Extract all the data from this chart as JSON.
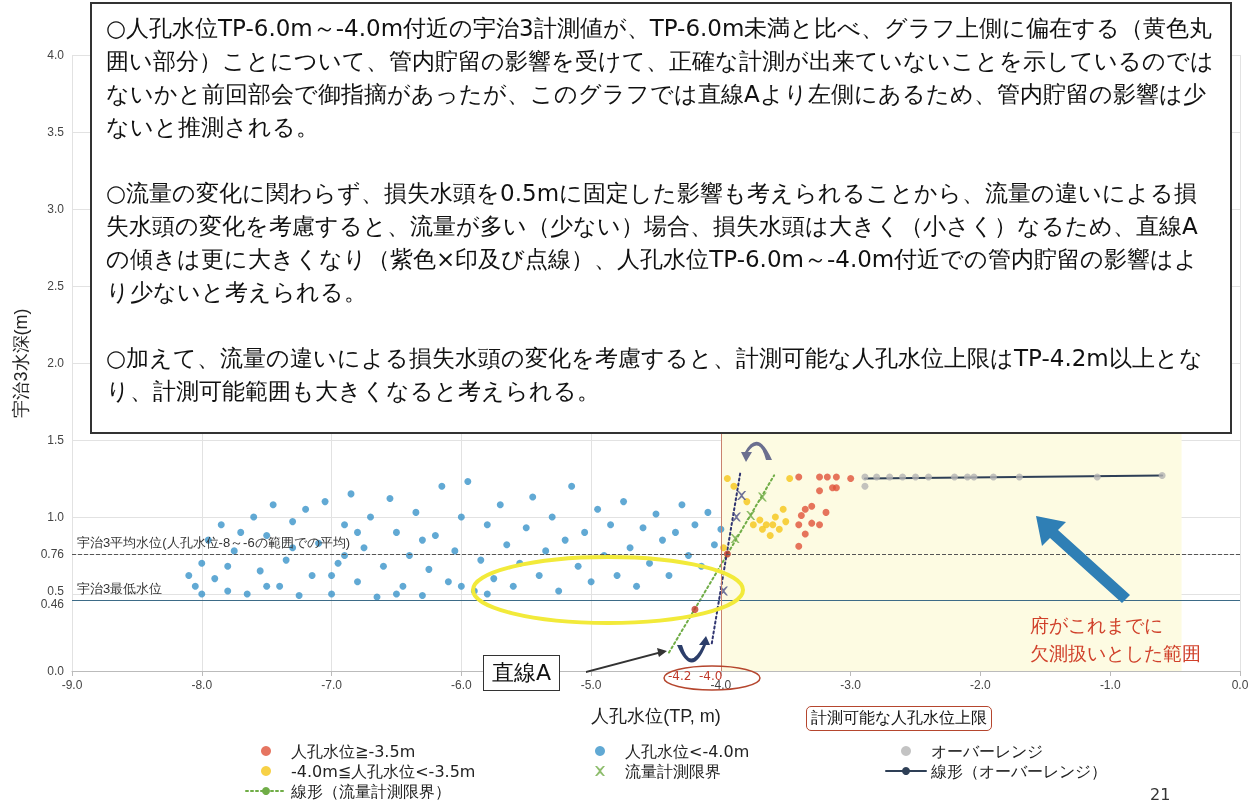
{
  "chart_data": {
    "type": "scatter",
    "xlabel": "人孔水位(TP, m)",
    "ylabel": "宇治3水深(m)",
    "xlim": [
      -9,
      0
    ],
    "xticks": [
      {
        "value": -9,
        "label": "-9.0"
      },
      {
        "value": -8,
        "label": "-8.0"
      },
      {
        "value": -7,
        "label": "-7.0"
      },
      {
        "value": -6,
        "label": "-6.0"
      },
      {
        "value": -5,
        "label": "-5.0"
      },
      {
        "value": -4,
        "label": "-4.0"
      },
      {
        "value": -3,
        "label": "-3.0"
      },
      {
        "value": -2,
        "label": "-2.0"
      },
      {
        "value": -1,
        "label": "-1.0"
      },
      {
        "value": 0,
        "label": "0.0"
      }
    ],
    "ylim": [
      0,
      4
    ],
    "yticks": [
      {
        "value": 0,
        "label": "0.0"
      },
      0.46,
      0.5,
      0.76,
      {
        "value": 1,
        "label": "1.0"
      },
      1.5,
      {
        "value": 2,
        "label": "2.0"
      },
      2.5,
      {
        "value": 3,
        "label": "3.0"
      },
      3.5,
      {
        "value": 4,
        "label": "4.0"
      }
    ],
    "grid": true,
    "legend": "bottom",
    "series": [
      {
        "name": "人孔水位≧-3.5m",
        "marker": "circle",
        "color": "#e0533a",
        "x": [
          -3.4,
          -3.24,
          -3.18,
          -3.11,
          -3.0,
          -3.24,
          -3.14,
          -3.11,
          -3.35,
          -3.3,
          -3.38,
          -3.19,
          -3.4,
          -3.3,
          -3.24,
          -3.35,
          -3.4
        ],
        "values": [
          1.26,
          1.26,
          1.26,
          1.26,
          1.25,
          1.17,
          1.19,
          1.19,
          1.05,
          1.07,
          1.01,
          1.03,
          0.95,
          0.96,
          0.95,
          0.89,
          0.81
        ]
      },
      {
        "name": "人孔水位<-4.0m",
        "marker": "circle",
        "color": "#3a93c9",
        "x": [
          -8.1,
          -8.05,
          -8.0,
          -7.95,
          -7.9,
          -7.85,
          -7.8,
          -7.75,
          -7.7,
          -7.65,
          -7.6,
          -7.55,
          -7.5,
          -7.45,
          -7.4,
          -7.35,
          -7.3,
          -7.25,
          -7.2,
          -7.15,
          -7.1,
          -7.05,
          -7.0,
          -6.95,
          -6.9,
          -6.85,
          -6.8,
          -6.75,
          -6.7,
          -6.65,
          -6.6,
          -6.55,
          -6.5,
          -6.45,
          -6.4,
          -6.35,
          -6.3,
          -6.25,
          -6.2,
          -6.15,
          -6.1,
          -6.05,
          -6.0,
          -5.95,
          -5.9,
          -5.85,
          -5.8,
          -5.75,
          -5.7,
          -5.65,
          -5.6,
          -5.55,
          -5.5,
          -5.45,
          -5.4,
          -5.35,
          -5.3,
          -5.25,
          -5.2,
          -5.15,
          -5.1,
          -5.05,
          -5.0,
          -4.95,
          -4.9,
          -4.85,
          -4.8,
          -4.75,
          -4.7,
          -4.65,
          -4.6,
          -4.55,
          -4.5,
          -4.45,
          -4.4,
          -4.35,
          -4.3,
          -4.25,
          -4.2,
          -4.15,
          -4.1,
          -4.05,
          -4.0,
          -8.0,
          -7.5,
          -7.0,
          -6.5,
          -6.0,
          -7.3,
          -6.8,
          -6.3,
          -7.8,
          -6.9,
          -5.8
        ],
        "values": [
          0.62,
          0.55,
          0.7,
          0.85,
          0.6,
          0.95,
          0.52,
          0.78,
          0.9,
          0.5,
          1.0,
          0.65,
          0.88,
          1.08,
          0.55,
          0.72,
          0.97,
          0.49,
          1.05,
          0.62,
          0.83,
          1.1,
          0.5,
          0.7,
          0.95,
          1.15,
          0.58,
          0.8,
          1.0,
          0.48,
          0.68,
          1.12,
          0.9,
          0.55,
          0.75,
          1.03,
          0.49,
          0.66,
          0.88,
          1.2,
          0.58,
          0.78,
          1.0,
          1.23,
          0.52,
          0.72,
          0.95,
          0.6,
          1.08,
          0.82,
          0.55,
          0.7,
          0.93,
          1.13,
          0.62,
          0.78,
          1.0,
          0.52,
          0.85,
          1.2,
          0.68,
          0.9,
          0.58,
          1.05,
          0.75,
          0.95,
          0.62,
          1.1,
          0.8,
          0.55,
          0.93,
          0.7,
          1.02,
          0.85,
          0.62,
          0.9,
          1.08,
          0.75,
          0.95,
          0.68,
          1.03,
          0.82,
          0.92,
          0.5,
          0.55,
          0.62,
          0.5,
          0.55,
          0.8,
          0.9,
          0.85,
          0.68,
          0.75,
          0.5
        ]
      },
      {
        "name": "オーバーレンジ",
        "marker": "circle",
        "color": "#b4b4b4",
        "x": [
          -2.89,
          -2.89,
          -2.8,
          -2.7,
          -2.6,
          -2.5,
          -2.4,
          -2.2,
          -2.1,
          -2.05,
          -1.9,
          -1.7,
          -1.1,
          -0.6
        ],
        "values": [
          1.26,
          1.2,
          1.26,
          1.26,
          1.26,
          1.26,
          1.26,
          1.26,
          1.26,
          1.26,
          1.26,
          1.26,
          1.26,
          1.27
        ]
      },
      {
        "name": "-4.0m≦人孔水位<-3.5m",
        "marker": "circle",
        "color": "#f5c518",
        "x": [
          -3.98,
          -3.95,
          -3.9,
          -3.8,
          -3.75,
          -3.7,
          -3.68,
          -3.65,
          -3.62,
          -3.6,
          -3.58,
          -3.55,
          -3.52,
          -3.5,
          -3.47
        ],
        "values": [
          0.8,
          1.25,
          1.2,
          1.1,
          0.95,
          0.98,
          0.92,
          0.95,
          0.88,
          0.95,
          1.0,
          0.92,
          1.05,
          0.97,
          1.25
        ]
      },
      {
        "name": "流量計測限界",
        "marker": "cross",
        "color": "#70ad47",
        "x": [
          -3.68,
          -3.77,
          -3.89
        ],
        "values": [
          1.13,
          1.01,
          0.86
        ]
      },
      {
        "name": "線形（オーバーレンジ）",
        "type": "line",
        "marker": "none",
        "line_style": "solid",
        "color": "#2e3f56",
        "x": [
          -2.89,
          -0.6
        ],
        "values": [
          1.25,
          1.27
        ]
      },
      {
        "name": "線形（流量計測限界）",
        "type": "line",
        "marker": "none",
        "line_style": "dotted",
        "color": "#70ad47",
        "x": [
          -4.4,
          -3.59
        ],
        "values": [
          0.12,
          1.27
        ]
      },
      {
        "type": "line",
        "marker": "none",
        "line_style": "dotted",
        "color": "#2f3470",
        "x": [
          -4.07,
          -3.85
        ],
        "values": [
          0.18,
          1.29
        ]
      },
      {
        "marker": "cross",
        "color": "#4a4f86",
        "x": [
          -3.98,
          -3.88,
          -3.84
        ],
        "values": [
          0.52,
          1.0,
          1.14
        ]
      },
      {
        "marker": "circle",
        "color": "#c0392b",
        "x": [
          -3.95,
          -4.2
        ],
        "values": [
          0.76,
          0.4
        ]
      }
    ],
    "ref_lines": [
      {
        "axis": "y",
        "value": 0.76,
        "label": "宇治3平均水位(人孔水位-8～-6の範囲での平均)",
        "color": "#555555",
        "line_style": "dashed"
      },
      {
        "axis": "y",
        "value": 0.46,
        "label": "宇治3最低水位",
        "color": "#3d6b87",
        "line_style": "solid"
      },
      {
        "axis": "x",
        "value": -4.0,
        "color": "#c9826e",
        "line_style": "solid"
      }
    ],
    "bands": [
      {
        "axis": "x",
        "from": -4.0,
        "to": -0.45,
        "color": "#fdfbe2"
      }
    ],
    "annotations": [
      "○人孔水位TP-6.0m～-4.0m付近の宇治3計測値が、TP-6.0m未満と比べ、グラフ上側に偏在する（黄色丸囲い部分）ことについて、管内貯留の影響を受けて、正確な計測が出来ていないことを示しているのではないかと前回部会で御指摘があったが、このグラフでは直線Aより左側にあるため、管内貯留の影響は少ないと推測される。",
      "○流量の変化に関わらず、損失水頭を0.5mに固定した影響も考えられることから、流量の違いによる損失水頭の変化を考慮すると、流量が多い（少ない）場合、損失水頭は大きく（小さく）なるため、直線Aの傾きは更に大きくなり（紫色×印及び点線）、人孔水位TP-6.0m～-4.0m付近での管内貯留の影響はより少ないと考えられる。",
      "○加えて、流量の違いによる損失水頭の変化を考慮すると、計測可能な人孔水位上限はTP-4.2m以上となり、計測可能範囲も大きくなると考えられる。",
      "直線A",
      "-4.2  -4.0",
      "計測可能な人孔水位上限",
      "府がこれまでに",
      "欠測扱いとした範囲",
      "21"
    ]
  }
}
